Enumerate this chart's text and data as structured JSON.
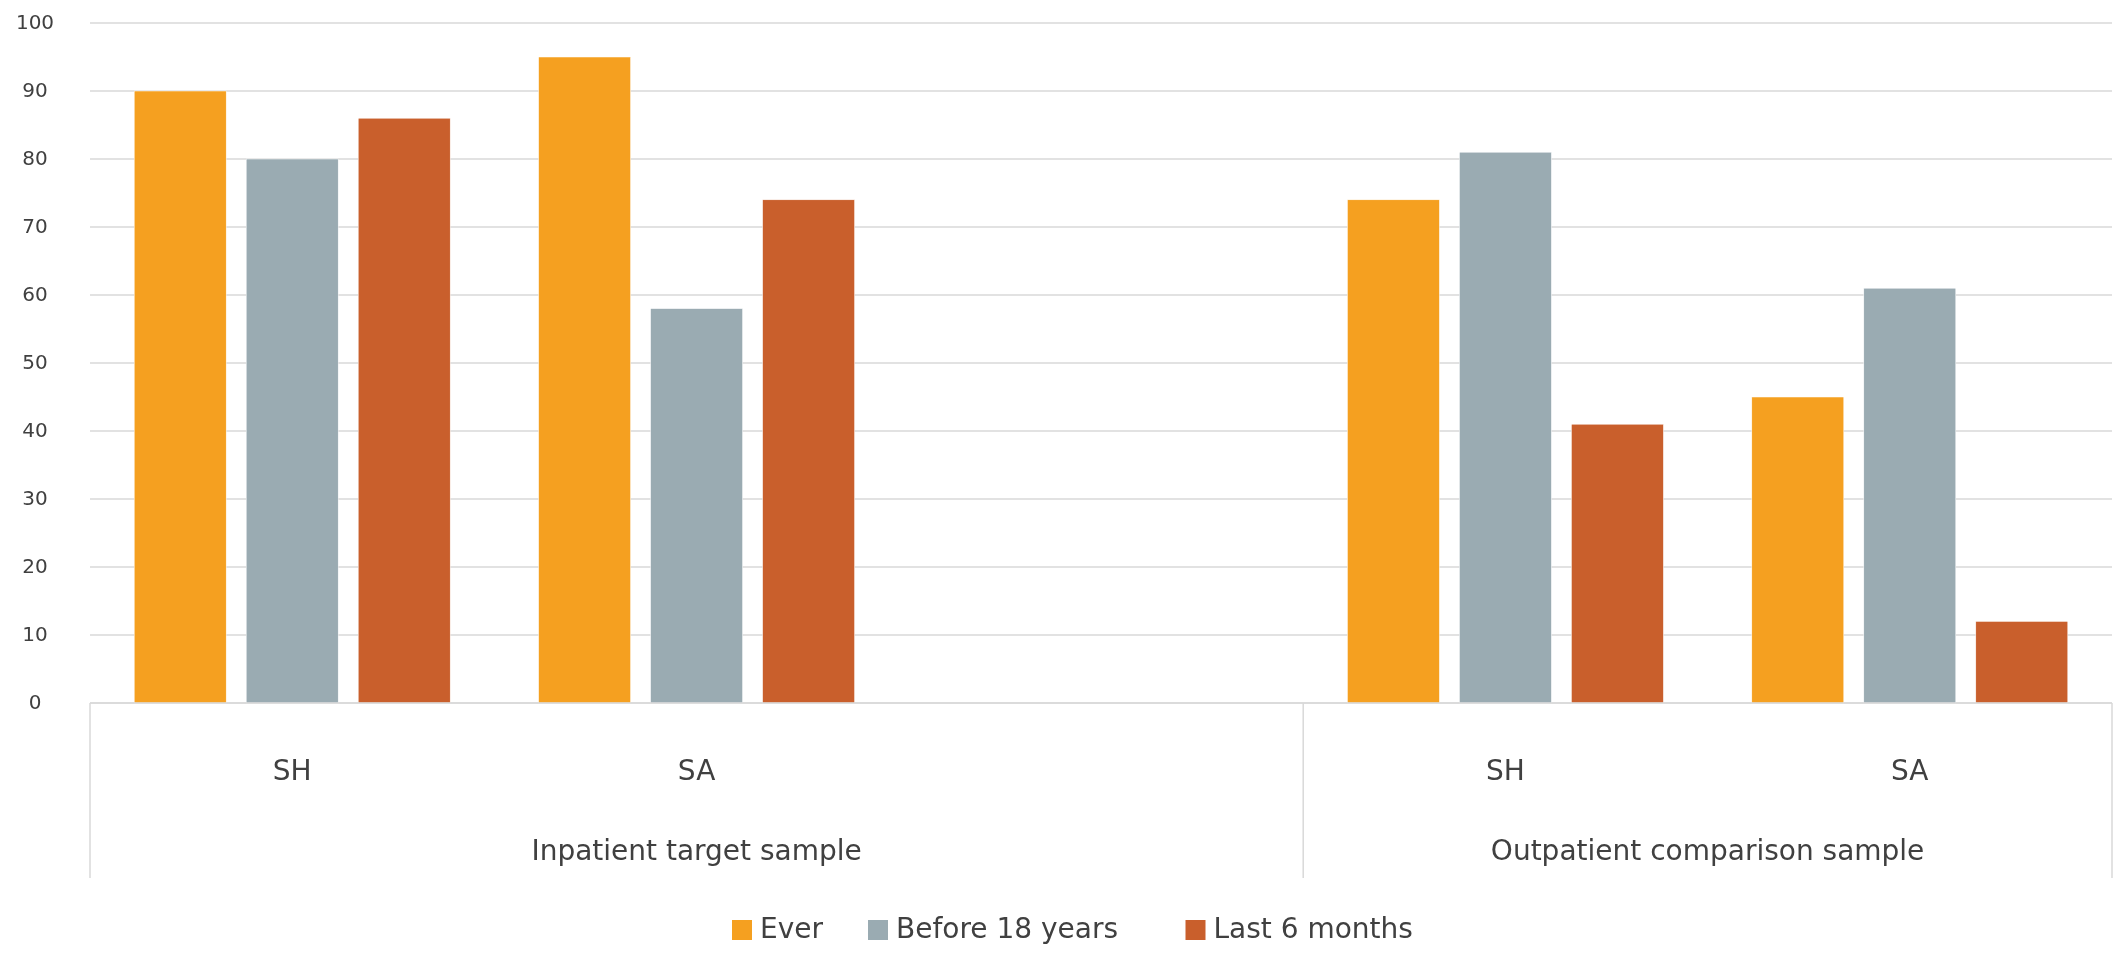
{
  "chart_data": {
    "type": "bar",
    "categories": [
      "SH",
      "SA",
      null,
      "SH",
      "SA"
    ],
    "series": [
      {
        "name": "Ever",
        "color": "#f5a020",
        "values": [
          90,
          95,
          null,
          74,
          45
        ]
      },
      {
        "name": "Before 18 years",
        "color": "#9aabb2",
        "values": [
          80,
          58,
          null,
          81,
          61
        ]
      },
      {
        "name": "Last 6 months",
        "color": "#c95f2c",
        "values": [
          86,
          74,
          null,
          41,
          12
        ]
      }
    ],
    "annotations": [
      "Inpatient target sample",
      "Outpatient comparison sample"
    ],
    "ylim": [
      0,
      100
    ],
    "yticks": [
      0,
      10,
      20,
      30,
      40,
      50,
      60,
      70,
      80,
      90,
      100
    ],
    "grid": "y",
    "legend": "bottom"
  }
}
